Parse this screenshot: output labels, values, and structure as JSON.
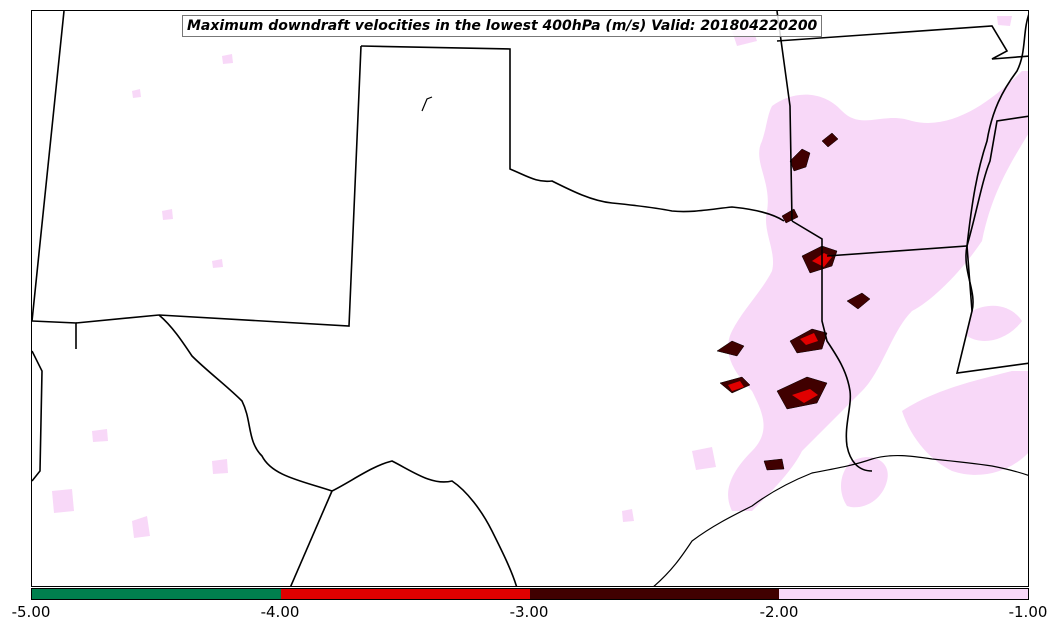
{
  "title": "Maximum downdraft velocities in the lowest 400hPa (m/s) Valid: 201804220200",
  "colorbar": {
    "bins": [
      {
        "from": -5.0,
        "to": -4.0,
        "color": "#007f4e"
      },
      {
        "from": -4.0,
        "to": -3.0,
        "color": "#e00000"
      },
      {
        "from": -3.0,
        "to": -2.0,
        "color": "#400000"
      },
      {
        "from": -2.0,
        "to": -1.0,
        "color": "#f8d8f8"
      }
    ],
    "tick_labels": [
      "-5.00",
      "-4.00",
      "-3.00",
      "-2.00",
      "-1.00"
    ]
  },
  "colors": {
    "light_pink": "#f8d8f8",
    "dark_red": "#400000",
    "red": "#e00000",
    "green": "#007f4e",
    "boundaries": "#000000"
  }
}
